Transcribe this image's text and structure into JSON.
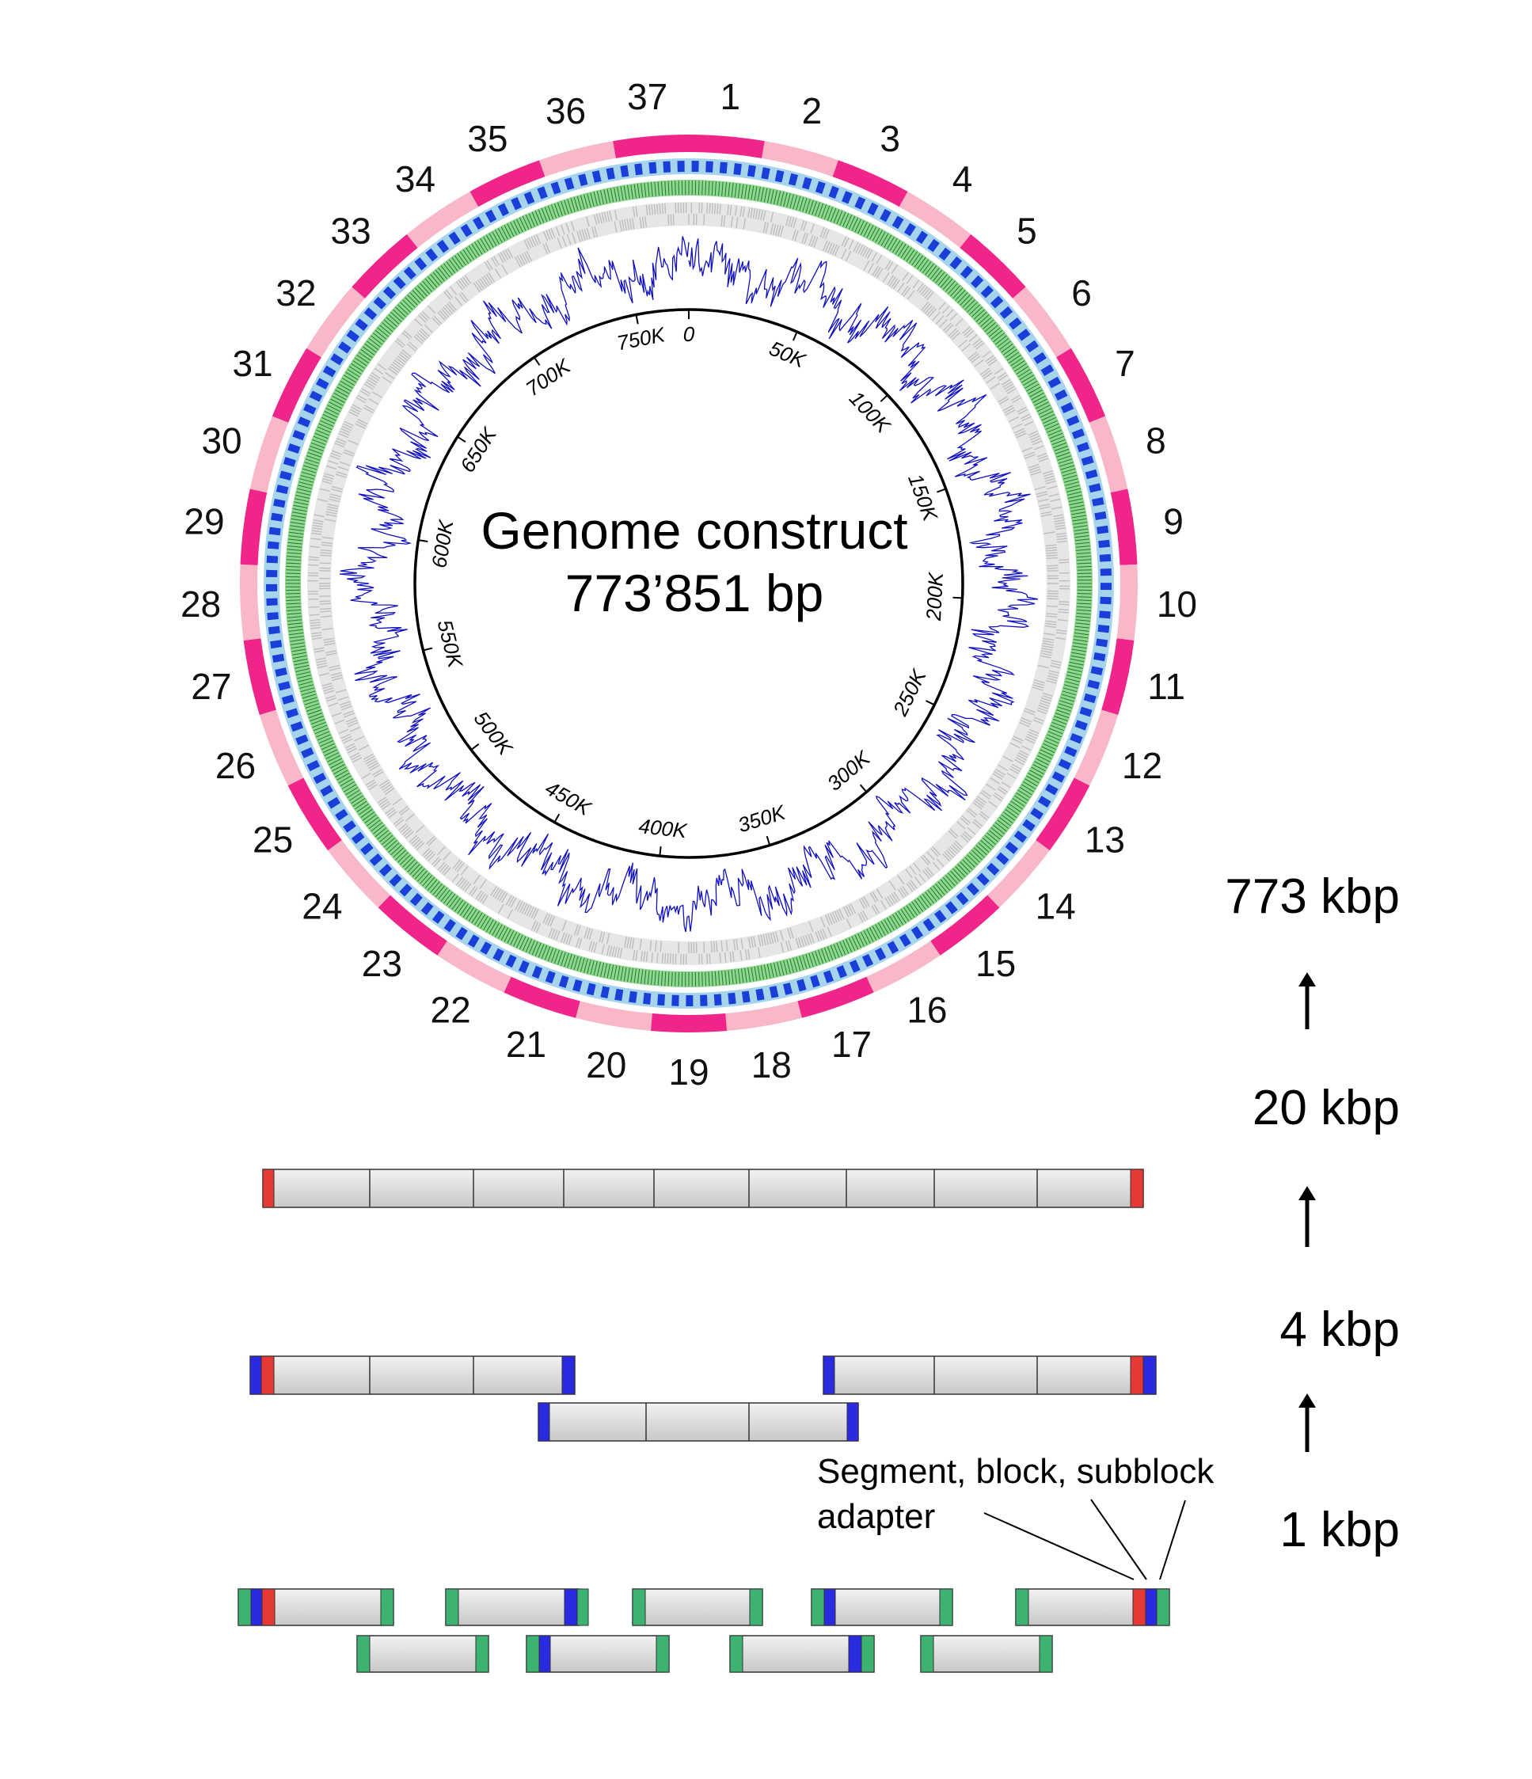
{
  "genome": {
    "title": "Genome construct",
    "size": "773’851 bp"
  },
  "segments": {
    "labels": [
      "1",
      "2",
      "3",
      "4",
      "5",
      "6",
      "7",
      "8",
      "9",
      "10",
      "11",
      "12",
      "13",
      "14",
      "15",
      "16",
      "17",
      "18",
      "19",
      "20",
      "21",
      "22",
      "23",
      "24",
      "25",
      "26",
      "27",
      "28",
      "29",
      "30",
      "31",
      "32",
      "33",
      "34",
      "35",
      "36",
      "37"
    ],
    "highlighted": "25",
    "highlight_color": "#e91e8c"
  },
  "ticks": [
    "0",
    "50K",
    "100K",
    "150K",
    "200K",
    "250K",
    "300K",
    "350K",
    "400K",
    "450K",
    "500K",
    "550K",
    "600K",
    "650K",
    "700K",
    "750K"
  ],
  "scale_labels": {
    "genome": "773 kbp",
    "segment": "20 kbp",
    "block": "4 kbp",
    "subblock": "1 kbp"
  },
  "annotation": {
    "line1": "Segment, block, subblock",
    "line2": "adapter"
  },
  "colors": {
    "segment_dark": "#f0258a",
    "segment_light": "#f8b8c8",
    "block_dark": "#1a3fd8",
    "block_light": "#a6d4ec",
    "subblock_green": "#3db84a",
    "gene_gray": "#bdbdbd",
    "gc_blue": "#1010c0",
    "adapter_red": "#e53935",
    "adapter_blue": "#2a2ae0",
    "adapter_green": "#3cb371"
  }
}
